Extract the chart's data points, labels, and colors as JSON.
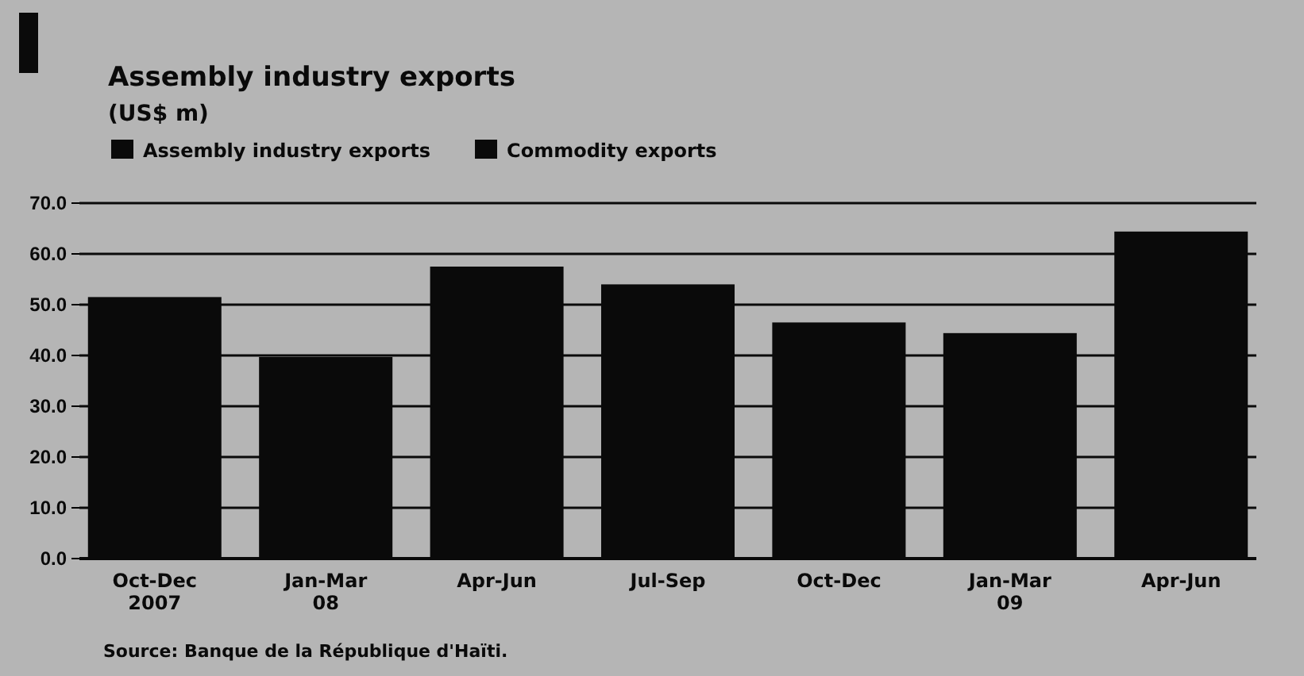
{
  "chart_data": {
    "type": "bar",
    "title": "Assembly industry exports",
    "subtitle": "(US$ m)",
    "categories": [
      "Oct-Dec\n2007",
      "Jan-Mar\n08",
      "Apr-Jun",
      "Jul-Sep",
      "Oct-Dec",
      "Jan-Mar\n09",
      "Apr-Jun"
    ],
    "series": [
      {
        "name": "Assembly industry exports",
        "color": "#0a0a0a",
        "values": [
          51.5,
          39.7,
          57.5,
          54.0,
          46.5,
          44.4,
          64.4
        ]
      },
      {
        "name": "Commodity exports",
        "color": "#0a0a0a",
        "values": [
          null,
          null,
          null,
          null,
          null,
          null,
          null
        ]
      }
    ],
    "ylim": [
      0,
      70
    ],
    "yticks": [
      {
        "value": 0,
        "label": "0.0"
      },
      {
        "value": 10,
        "label": "10.0"
      },
      {
        "value": 20,
        "label": "20.0"
      },
      {
        "value": 30,
        "label": "30.0"
      },
      {
        "value": 40,
        "label": "40.0"
      },
      {
        "value": 50,
        "label": "50.0"
      },
      {
        "value": 60,
        "label": "60.0"
      },
      {
        "value": 70,
        "label": "70.0"
      }
    ],
    "grid": "y",
    "legend": "top left",
    "annotations": [
      "Source: Banque de la République d'Haïti."
    ]
  }
}
